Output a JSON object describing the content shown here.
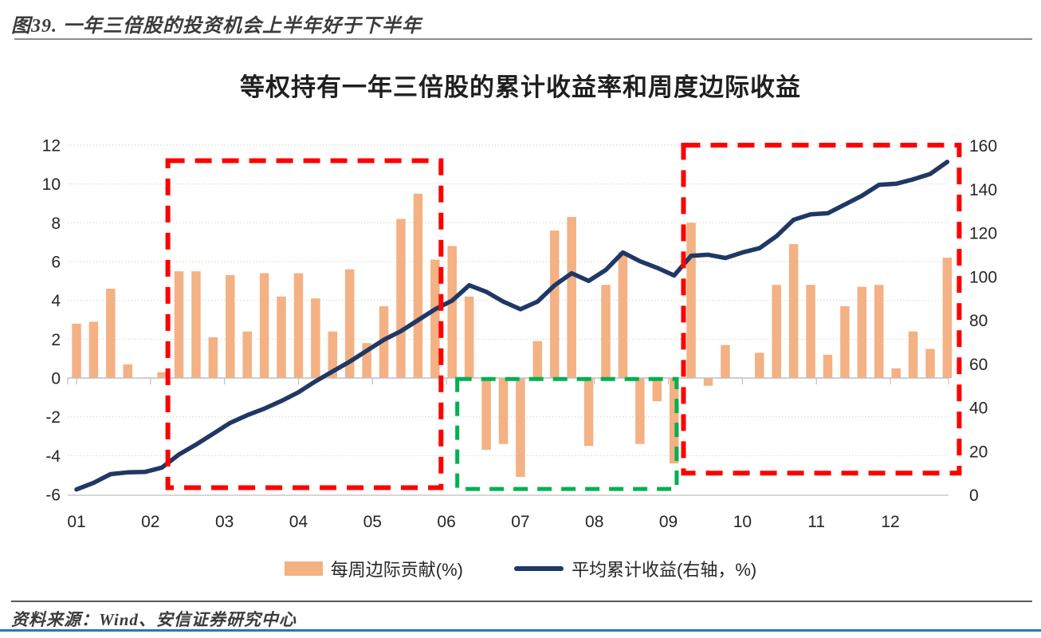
{
  "header": {
    "figure_title": "图39. 一年三倍股的投资机会上半年好于下半年"
  },
  "chart_data": {
    "type": "bar",
    "title": "等权持有一年三倍股的累计收益率和周度边际收益",
    "x_months": [
      "01",
      "02",
      "03",
      "04",
      "05",
      "06",
      "07",
      "08",
      "09",
      "10",
      "11",
      "12"
    ],
    "weeks": 52,
    "grid": "horizontal-dotted",
    "legend_position": "bottom",
    "colors": {
      "bar": "#F4B183",
      "line": "#1F3864",
      "grid": "#DBDBDB",
      "axis": "#BFBFBF",
      "red_box": "#FF0000",
      "green_box": "#00B050"
    },
    "left_axis": {
      "min": -6,
      "max": 12,
      "step": 2,
      "ticks": [
        12,
        10,
        8,
        6,
        4,
        2,
        0,
        -2,
        -4,
        -6
      ]
    },
    "right_axis": {
      "min": 0,
      "max": 160,
      "step": 20,
      "ticks": [
        160,
        140,
        120,
        100,
        80,
        60,
        40,
        20,
        0
      ]
    },
    "series": [
      {
        "name": "每周边际贡献(%)",
        "type": "bar",
        "axis": "left",
        "values": [
          2.8,
          2.9,
          4.6,
          0.7,
          0.0,
          0.3,
          5.5,
          5.5,
          2.1,
          5.3,
          2.4,
          5.4,
          4.2,
          5.4,
          4.1,
          2.4,
          5.6,
          1.8,
          3.7,
          8.2,
          9.5,
          6.1,
          6.8,
          4.2,
          -3.7,
          -3.4,
          -5.1,
          1.9,
          7.6,
          8.3,
          -3.5,
          4.8,
          6.5,
          -3.4,
          -1.2,
          -4.4,
          8.0,
          -0.4,
          1.7,
          0.0,
          1.3,
          4.8,
          6.9,
          4.8,
          1.2,
          3.7,
          4.7,
          4.8,
          0.5,
          2.4,
          1.5,
          6.2
        ]
      },
      {
        "name": "平均累计收益(右轴，%)",
        "type": "line",
        "axis": "right",
        "values": [
          2.5,
          5.5,
          9.5,
          10.3,
          10.5,
          12.5,
          18.5,
          23,
          28,
          33,
          36.5,
          39.5,
          43,
          47,
          52,
          56.5,
          61,
          66,
          71,
          75,
          80,
          85,
          89,
          96,
          93,
          88.5,
          85,
          88.5,
          96,
          101.5,
          98,
          103,
          111,
          107,
          104,
          100.5,
          109.5,
          110,
          108.5,
          111,
          113,
          118.5,
          126,
          128.5,
          129,
          133,
          137,
          142,
          142.5,
          144.5,
          147,
          152.5
        ]
      }
    ],
    "annotations": [
      {
        "name": "red-dashed-box-first-half",
        "color": "#FF0000",
        "week_from": 6.35,
        "week_to": 22.35,
        "value_from": 11.2,
        "value_to": -5.65,
        "dash": "21 13",
        "width": 6
      },
      {
        "name": "green-dashed-box-mid-year",
        "color": "#00B050",
        "week_from": 23.3,
        "week_to": 36.15,
        "value_from": -0.05,
        "value_to": -5.72,
        "dash": "18 12",
        "width": 5
      },
      {
        "name": "red-dashed-box-second-half",
        "color": "#FF0000",
        "week_from": 36.55,
        "week_to": 52.7,
        "value_from": 12.0,
        "value_to": -4.9,
        "dash": "21 13",
        "width": 6
      }
    ]
  },
  "footer": {
    "source": "资料来源：Wind、安信证券研究中心"
  }
}
